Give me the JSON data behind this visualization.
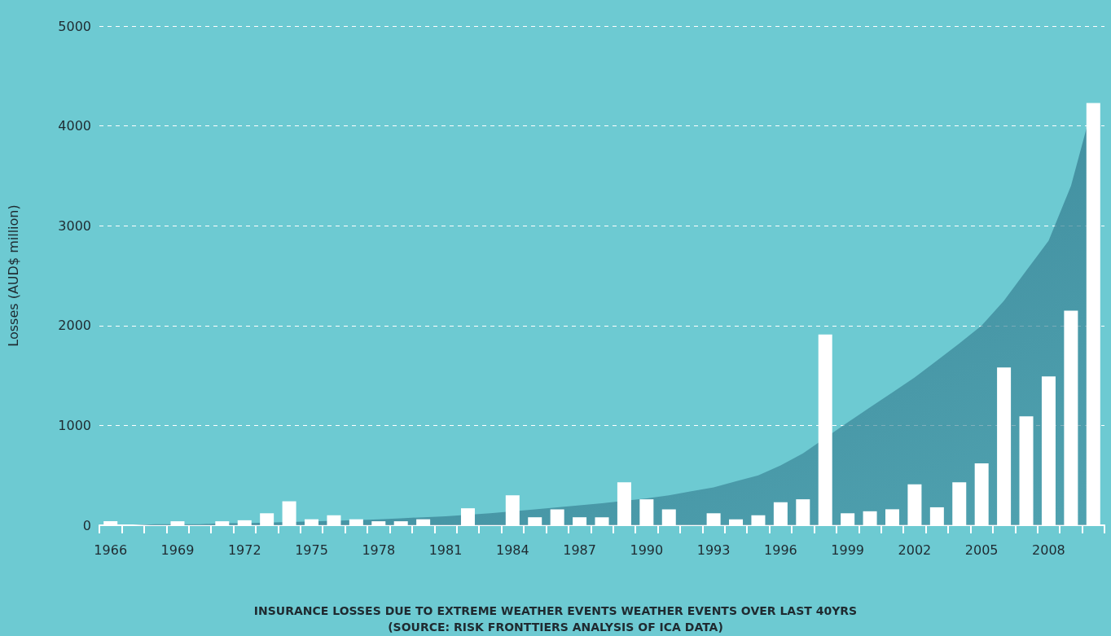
{
  "chart_data": {
    "type": "bar",
    "title": "INSURANCE LOSSES DUE TO EXTREME WEATHER EVENTS WEATHER EVENTS OVER LAST 40YRS",
    "ylabel": "Losses (AUD$ million)",
    "annotations": [
      "(SOURCE: RISK FRONTTIERS ANALYSIS OF ICA DATA)"
    ],
    "categories": [
      "1966",
      null,
      null,
      "1969",
      null,
      null,
      "1972",
      null,
      null,
      "1975",
      null,
      null,
      "1978",
      null,
      null,
      "1981",
      null,
      null,
      "1984",
      null,
      null,
      "1987",
      null,
      null,
      "1990",
      null,
      null,
      "1993",
      null,
      null,
      "1996",
      null,
      null,
      "1999",
      null,
      null,
      "2002",
      null,
      null,
      "2005",
      null,
      null,
      "2008",
      null,
      null
    ],
    "series": [
      {
        "type": "area",
        "color": "#367f92",
        "values": [
          0,
          0,
          10,
          10,
          10,
          20,
          20,
          null,
          null,
          null,
          null,
          50,
          60,
          70,
          80,
          90,
          null,
          120,
          null,
          160,
          180,
          200,
          220,
          null,
          270,
          300,
          340,
          380,
          440,
          500,
          600,
          720,
          null,
          1030,
          1180,
          1330,
          1480,
          1650,
          1820,
          2000,
          2250,
          2550,
          2850,
          3400,
          4230
        ]
      },
      {
        "color": "#ffffff",
        "values": [
          40,
          0,
          0,
          40,
          0,
          40,
          50,
          120,
          240,
          60,
          100,
          60,
          40,
          40,
          60,
          0,
          170,
          0,
          300,
          80,
          160,
          80,
          80,
          430,
          260,
          160,
          0,
          120,
          60,
          100,
          230,
          260,
          1910,
          120,
          140,
          160,
          410,
          180,
          430,
          620,
          1580,
          1090,
          1490,
          2150,
          4230
        ]
      }
    ],
    "ylim": [
      0,
      5000
    ],
    "yticks": [
      0,
      1000,
      2000,
      3000,
      4000,
      5000
    ],
    "grid": "y"
  }
}
